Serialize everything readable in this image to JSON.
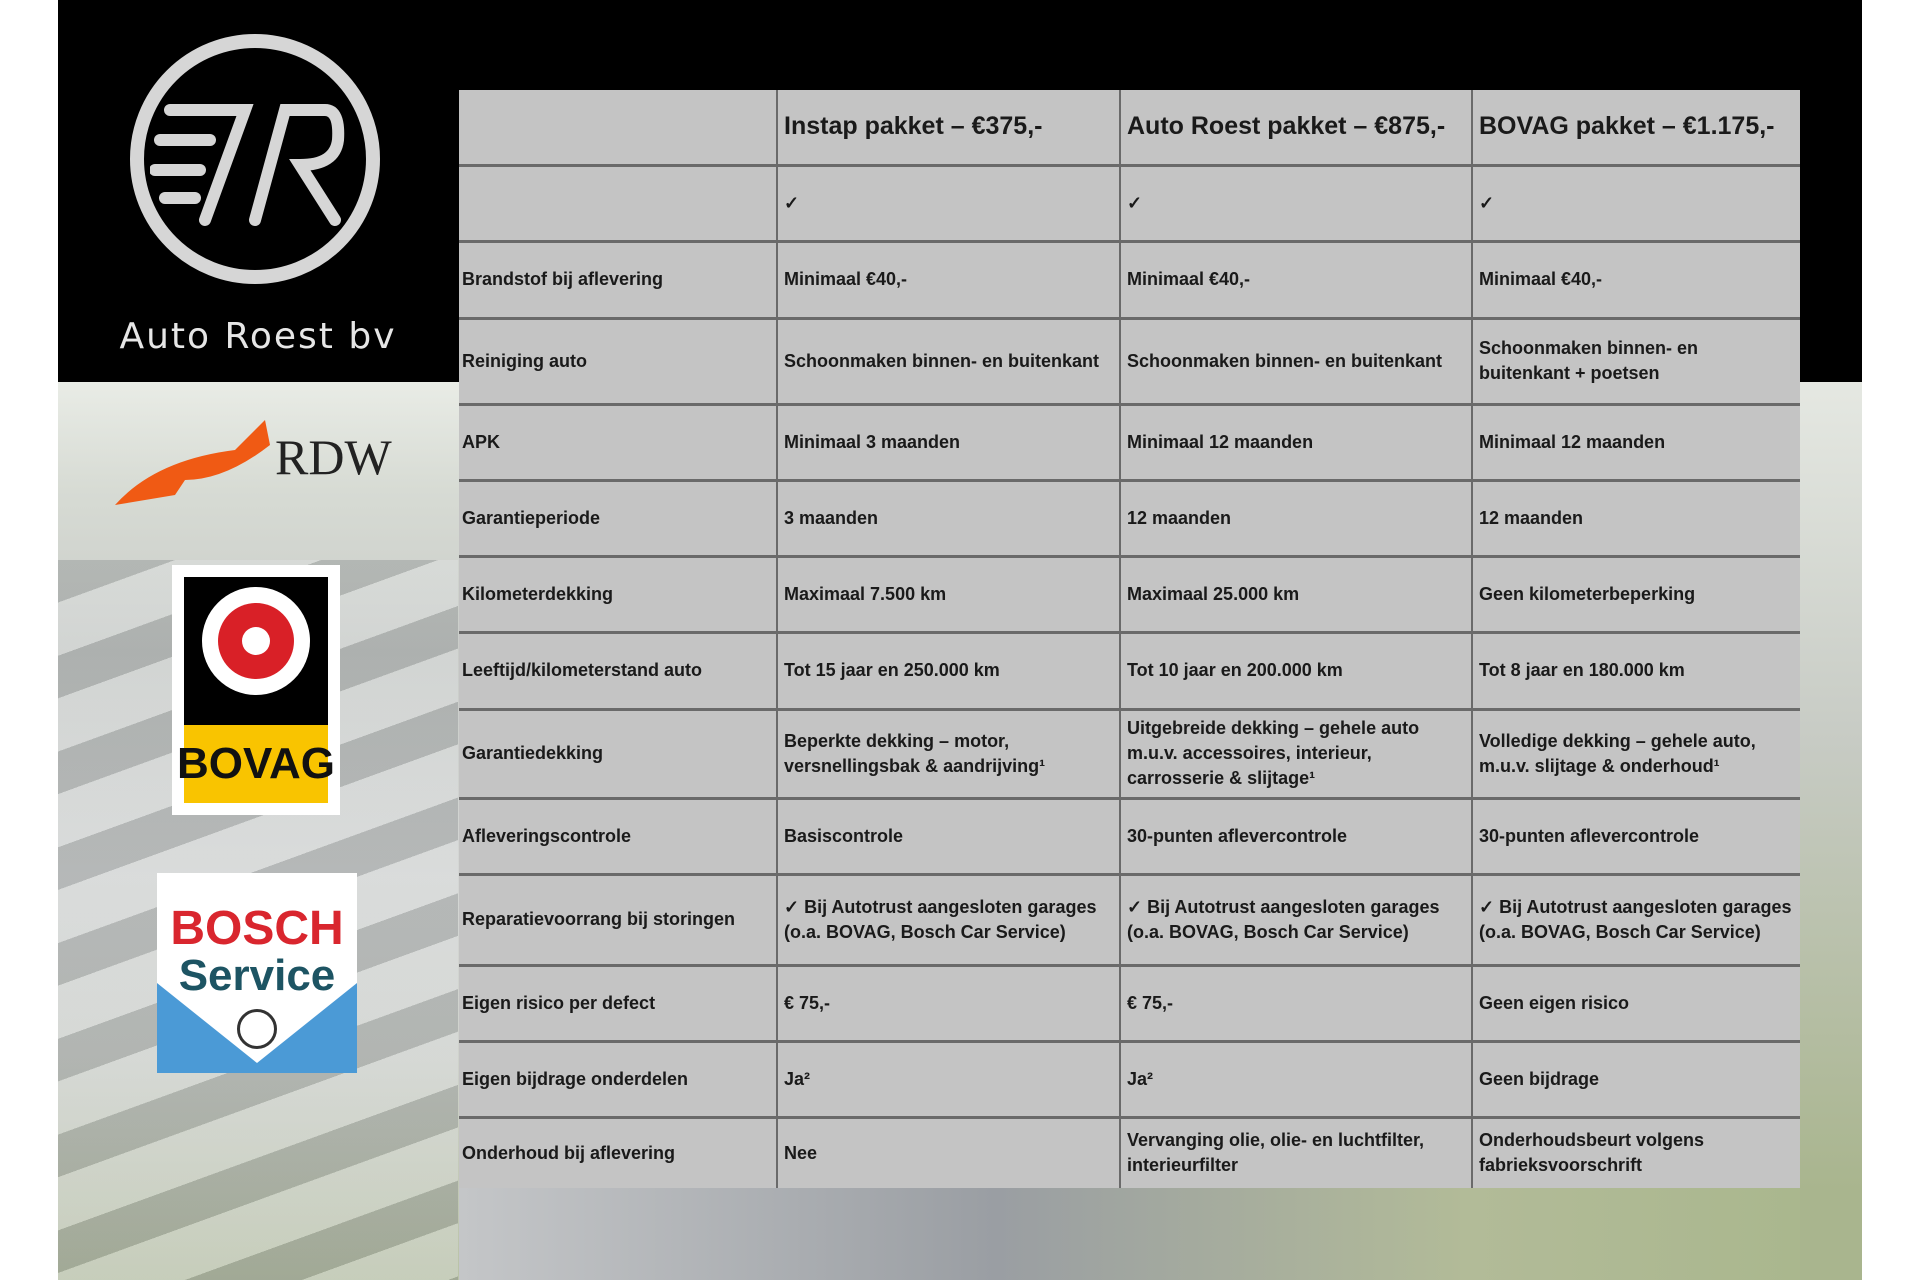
{
  "brand": {
    "name": "Auto Roest bv"
  },
  "logos": {
    "rdw": "RDW",
    "bovag": "BOVAG",
    "bosch_line1": "BOSCH",
    "bosch_line2": "Service"
  },
  "colors": {
    "table_bg": "#c4c4c4",
    "panel": "#000000",
    "rdw_orange": "#f05a14",
    "bovag_red": "#d92027",
    "bovag_yellow": "#f9c400",
    "bosch_red": "#d9262e",
    "bosch_teal": "#1d5463",
    "bosch_blue": "#4b9ad6"
  },
  "table": {
    "headers": [
      "",
      "Instap pakket – €375,-",
      "Auto Roest pakket – €875,-",
      "BOVAG pakket – €1.175,-"
    ],
    "rows": [
      [
        "",
        "✓",
        "✓",
        "✓"
      ],
      [
        "Brandstof bij aflevering",
        "Minimaal €40,-",
        "Minimaal €40,-",
        "Minimaal €40,-"
      ],
      [
        "Reiniging auto",
        "Schoonmaken binnen- en buitenkant",
        "Schoonmaken binnen- en buitenkant",
        "Schoonmaken binnen- en buitenkant + poetsen"
      ],
      [
        "APK",
        "Minimaal 3 maanden",
        "Minimaal 12 maanden",
        "Minimaal 12 maanden"
      ],
      [
        "Garantieperiode",
        "3 maanden",
        "12 maanden",
        "12 maanden"
      ],
      [
        "Kilometerdekking",
        "Maximaal 7.500 km",
        "Maximaal 25.000 km",
        "Geen kilometerbeperking"
      ],
      [
        "Leeftijd/kilometerstand auto",
        "Tot 15 jaar en 250.000 km",
        "Tot 10 jaar en 200.000 km",
        "Tot 8 jaar en 180.000 km"
      ],
      [
        "Garantiedekking",
        "Beperkte dekking – motor, versnellingsbak & aandrijving¹",
        "Uitgebreide dekking – gehele auto m.u.v. accessoires, interieur, carrosserie & slijtage¹",
        "Volledige dekking – gehele auto, m.u.v. slijtage & onderhoud¹"
      ],
      [
        "Afleveringscontrole",
        "Basiscontrole",
        "30-punten aflevercontrole",
        "30-punten aflevercontrole"
      ],
      [
        "Reparatievoorrang bij storingen",
        "✓ Bij Autotrust aangesloten garages (o.a. BOVAG, Bosch Car Service)",
        "✓ Bij Autotrust aangesloten garages (o.a. BOVAG, Bosch Car Service)",
        "✓ Bij Autotrust aangesloten garages (o.a. BOVAG, Bosch Car Service)"
      ],
      [
        "Eigen risico per defect",
        "€ 75,-",
        "€ 75,-",
        "Geen eigen risico"
      ],
      [
        "Eigen bijdrage onderdelen",
        "Ja²",
        "Ja²",
        "Geen bijdrage"
      ],
      [
        "Onderhoud bij aflevering",
        "Nee",
        "Vervanging olie, olie- en luchtfilter, interieurfilter",
        "Onderhoudsbeurt volgens fabrieksvoorschrift"
      ]
    ]
  }
}
